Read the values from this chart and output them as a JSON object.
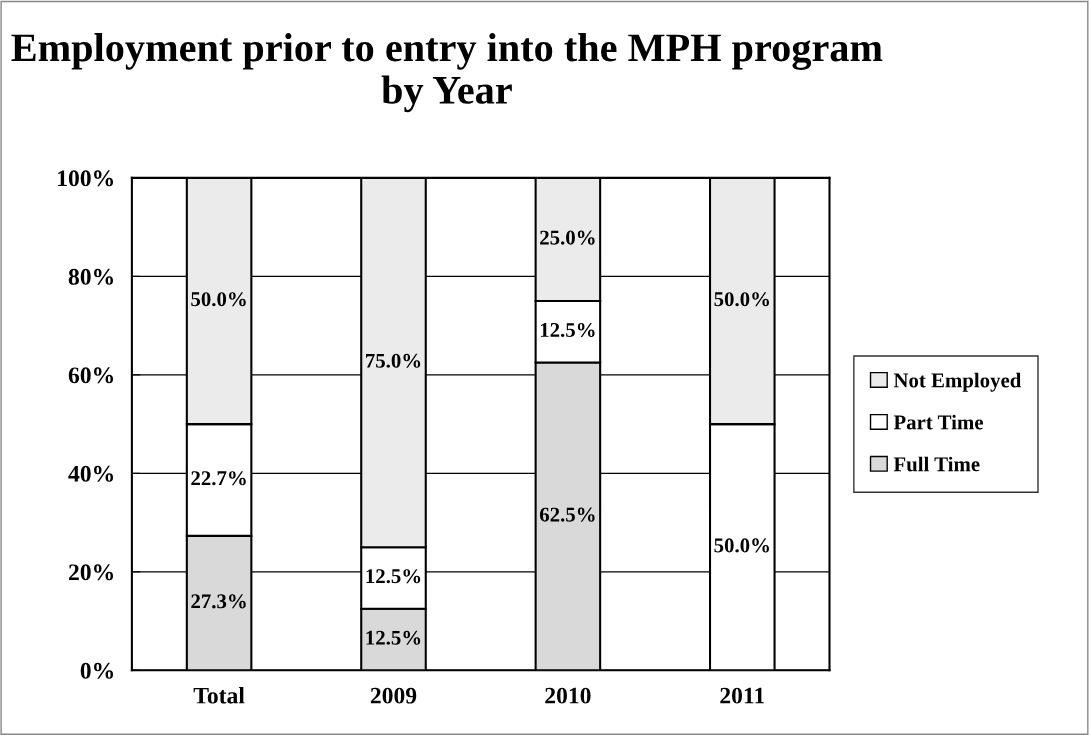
{
  "chart_data": {
    "type": "bar",
    "stacked": true,
    "title": "Employment prior to entry into the MPH program by Year",
    "categories": [
      "Total",
      "2009",
      "2010",
      "2011"
    ],
    "series": [
      {
        "name": "Full Time",
        "color": "#d9d9d9",
        "values": [
          27.3,
          12.5,
          62.5,
          0
        ],
        "value_labels": [
          "27.3%",
          "12.5%",
          "62.5%",
          null
        ]
      },
      {
        "name": "Part Time",
        "color": "#ffffff",
        "values": [
          22.7,
          12.5,
          12.5,
          50.0
        ],
        "value_labels": [
          "22.7%",
          "12.5%",
          "12.5%",
          "50.0%"
        ]
      },
      {
        "name": "Not Employed",
        "color": "#ebebeb",
        "values": [
          50.0,
          75.0,
          25.0,
          50.0
        ],
        "value_labels": [
          "50.0%",
          "75.0%",
          "25.0%",
          "50.0%"
        ]
      }
    ],
    "ylim": [
      0,
      100
    ],
    "yticks": [
      {
        "value": 0,
        "label": "0%"
      },
      {
        "value": 20,
        "label": "20%"
      },
      {
        "value": 40,
        "label": "40%"
      },
      {
        "value": 60,
        "label": "60%"
      },
      {
        "value": 80,
        "label": "80%"
      },
      {
        "value": 100,
        "label": "100%"
      }
    ],
    "grid": "y",
    "legend": "right"
  }
}
